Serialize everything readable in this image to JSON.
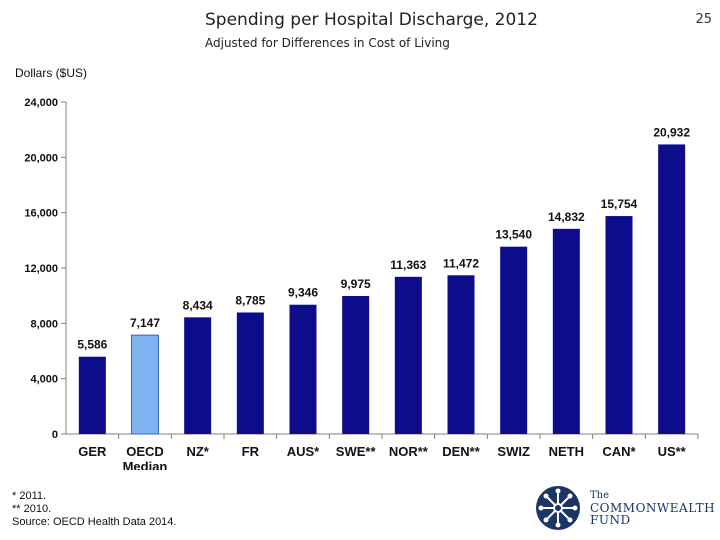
{
  "page_number": "25",
  "chart_data": {
    "type": "bar",
    "title": "Spending per Hospital Discharge, 2012",
    "subtitle": "Adjusted for Differences in Cost of Living",
    "ylabel": "Dollars ($US)",
    "xlabel": "",
    "ylim": [
      0,
      24000
    ],
    "yticks": [
      0,
      4000,
      8000,
      12000,
      16000,
      20000,
      24000
    ],
    "ytick_labels": [
      "0",
      "4,000",
      "8,000",
      "12,000",
      "16,000",
      "20,000",
      "24,000"
    ],
    "categories": [
      "GER",
      "OECD Median",
      "NZ*",
      "FR",
      "AUS*",
      "SWE**",
      "NOR**",
      "DEN**",
      "SWIZ",
      "NETH",
      "CAN*",
      "US**"
    ],
    "category_lines": [
      [
        "GER"
      ],
      [
        "OECD",
        "Median"
      ],
      [
        "NZ*"
      ],
      [
        "FR"
      ],
      [
        "AUS*"
      ],
      [
        "SWE**"
      ],
      [
        "NOR**"
      ],
      [
        "DEN**"
      ],
      [
        "SWIZ"
      ],
      [
        "NETH"
      ],
      [
        "CAN*"
      ],
      [
        "US**"
      ]
    ],
    "values": [
      5586,
      7147,
      8434,
      8785,
      9346,
      9975,
      11363,
      11472,
      13540,
      14832,
      15754,
      20932
    ],
    "value_labels": [
      "5,586",
      "7,147",
      "8,434",
      "8,785",
      "9,346",
      "9,975",
      "11,363",
      "11,472",
      "13,540",
      "14,832",
      "15,754",
      "20,932"
    ],
    "highlight_index": 1,
    "colors": {
      "bar": "#0d0d8c",
      "highlight": "#7fb2f0",
      "highlight_edge": "#3a66b5",
      "axis": "#808080"
    }
  },
  "notes": [
    "* 2011.",
    "** 2010.",
    "Source: OECD Health Data 2014."
  ],
  "logo": {
    "line1": "The",
    "line2": "COMMONWEALTH",
    "line3": "FUND",
    "icon": "star-burst-icon",
    "color": "#1b3567"
  }
}
